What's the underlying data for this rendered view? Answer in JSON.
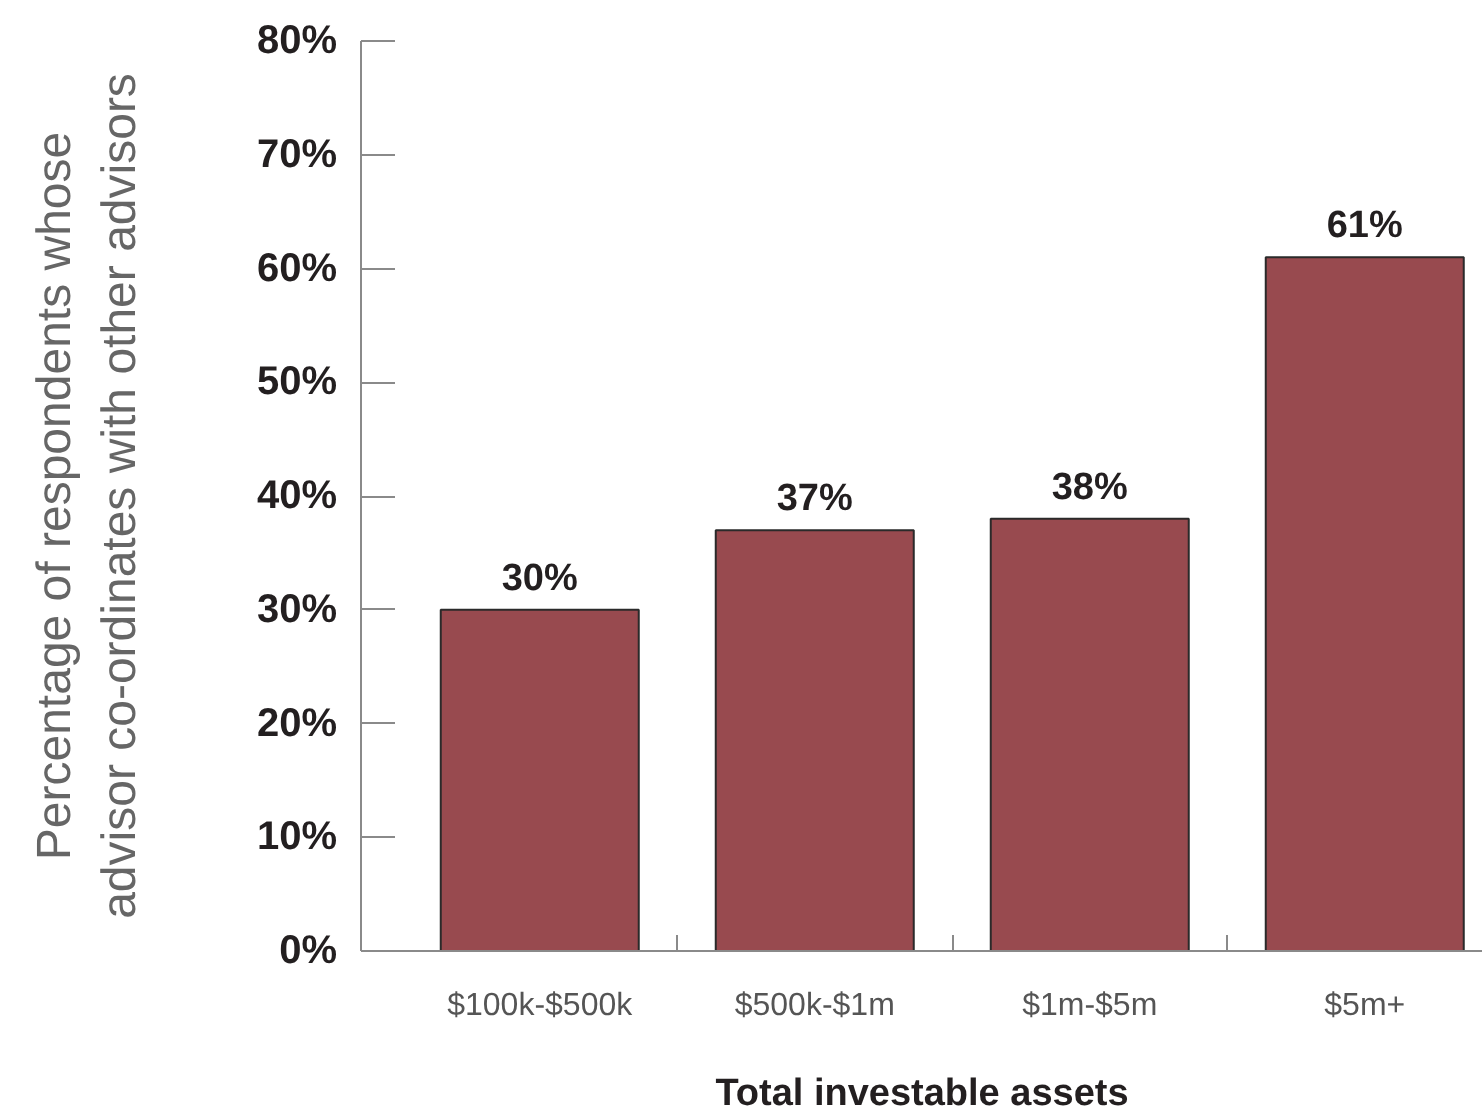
{
  "chart_data": {
    "type": "bar",
    "xlabel": "Total investable assets",
    "ylabel": "Percentage of respondents whose\nadvisor co-ordinates with other advisors",
    "categories": [
      "$100k-$500k",
      "$500k-$1m",
      "$1m-$5m",
      "$5m+"
    ],
    "values": [
      30,
      37,
      38,
      61
    ],
    "color": "#984a4f",
    "value_labels": [
      "30%",
      "37%",
      "38%",
      "61%"
    ],
    "ylim": [
      0,
      80
    ],
    "yticks": [
      {
        "value": 0,
        "label": "0%"
      },
      {
        "value": 10,
        "label": "10%"
      },
      {
        "value": 20,
        "label": "20%"
      },
      {
        "value": 30,
        "label": "30%"
      },
      {
        "value": 40,
        "label": "40%"
      },
      {
        "value": 50,
        "label": "50%"
      },
      {
        "value": 60,
        "label": "60%"
      },
      {
        "value": 70,
        "label": "70%"
      },
      {
        "value": 80,
        "label": "80%"
      }
    ]
  }
}
